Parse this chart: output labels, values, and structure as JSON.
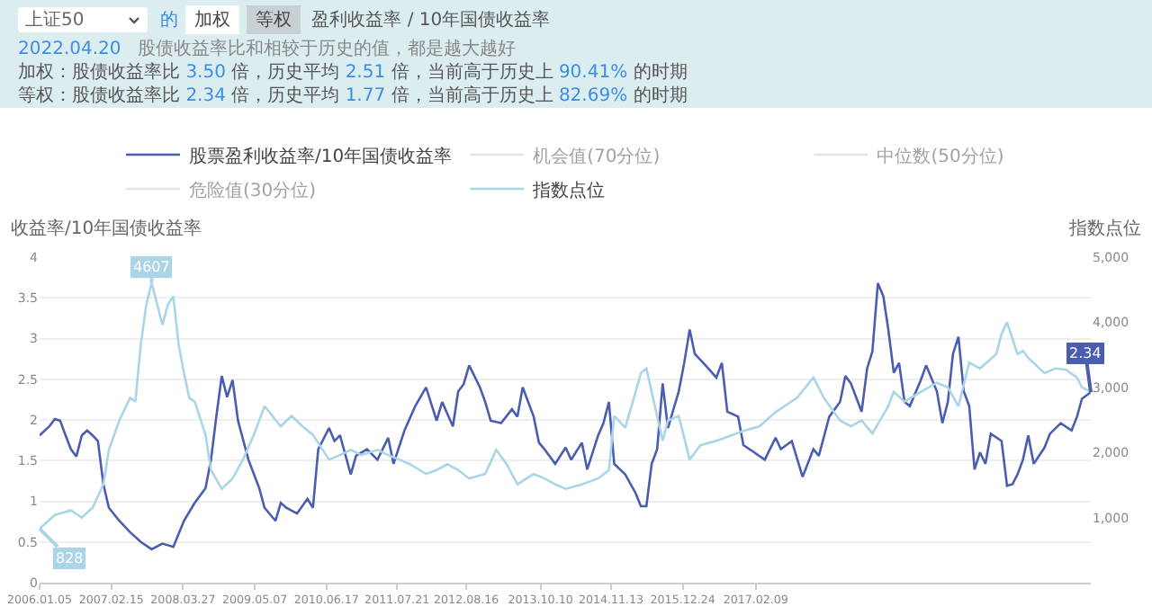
{
  "chart_data": [
    {
      "type": "other",
      "annotations": [
        "上证50",
        "的",
        "加权",
        "等权",
        "盈利收益率 / 10年国债收益率",
        "2022.04.20",
        "股债收益率比和相较于历史的值，都是越大越好",
        "加权：股债收益率比 3.50 倍，历史平均 2.51 倍，当前高于历史上 90.41% 的时期",
        "等权：股债收益率比 2.34 倍，历史平均 1.77 倍，当前高于历史上 82.69% 的时期"
      ]
    },
    {
      "type": "line",
      "ylabel": "收益率/10年国债收益率",
      "y2label": "指数点位",
      "legend": "top",
      "grid": "y",
      "xlim": [
        "2006-01-05",
        "2022-04-20"
      ],
      "xticks": [
        {
          "value": "2006-01-05",
          "label": "2006.01.05"
        },
        {
          "value": "2007-02-15",
          "label": "2007.02.15"
        },
        {
          "value": "2008-03-27",
          "label": "2008.03.27"
        },
        {
          "value": "2009-05-07",
          "label": "2009.05.07"
        },
        {
          "value": "2010-06-17",
          "label": "2010.06.17"
        },
        {
          "value": "2011-07-21",
          "label": "2011.07.21"
        },
        {
          "value": "2012-08-16",
          "label": "2012.08.16"
        },
        {
          "value": "2013-10-10",
          "label": "2013.10.10"
        },
        {
          "value": "2014-11-13",
          "label": "2014.11.13"
        },
        {
          "value": "2015-12-24",
          "label": "2015.12.24"
        },
        {
          "value": "2017-02-09",
          "label": "2017.02.09"
        }
      ],
      "ylim": [
        0,
        4
      ],
      "yticks": [
        0,
        0.5,
        1,
        1.5,
        2,
        2.5,
        3,
        3.5,
        4
      ],
      "y2lim": [
        0,
        5000
      ],
      "y2ticks": [
        {
          "value": 1000,
          "label": "1,000"
        },
        {
          "value": 2000,
          "label": "2,000"
        },
        {
          "value": 3000,
          "label": "3,000"
        },
        {
          "value": 4000,
          "label": "4,000"
        },
        {
          "value": 5000,
          "label": "5,000"
        }
      ],
      "series": [
        {
          "name": "股票盈利收益率/10年国债收益率",
          "color": "#4a5db0",
          "x": [
            "2006-01-05",
            "2006-03",
            "2006-04",
            "2006-05",
            "2006-06",
            "2006-07",
            "2006-08",
            "2006-09",
            "2006-10",
            "2006-11",
            "2006-12",
            "2007-01",
            "2007-02",
            "2007-04",
            "2007-06",
            "2007-08",
            "2007-10",
            "2007-12",
            "2008-02",
            "2008-04",
            "2008-06",
            "2008-08",
            "2008-09",
            "2008-10",
            "2008-11",
            "2008-12",
            "2009-01",
            "2009-02",
            "2009-04",
            "2009-06",
            "2009-07",
            "2009-09",
            "2009-10",
            "2009-11",
            "2010-01",
            "2010-03",
            "2010-04",
            "2010-05",
            "2010-07",
            "2010-08",
            "2010-09",
            "2010-11",
            "2010-12",
            "2011-02",
            "2011-04",
            "2011-06",
            "2011-07",
            "2011-09",
            "2011-11",
            "2012-01",
            "2012-03",
            "2012-04",
            "2012-06",
            "2012-07",
            "2012-08",
            "2012-09",
            "2012-11",
            "2012-12",
            "2013-01",
            "2013-03",
            "2013-05",
            "2013-06",
            "2013-07",
            "2013-09",
            "2013-10",
            "2013-11",
            "2014-01",
            "2014-03",
            "2014-04",
            "2014-06",
            "2014-07",
            "2014-09",
            "2014-10",
            "2014-11",
            "2014-12",
            "2015-02",
            "2015-04",
            "2015-05",
            "2015-06",
            "2015-07",
            "2015-08",
            "2015-09",
            "2015-10",
            "2015-12",
            "2016-01",
            "2016-02",
            "2016-03",
            "2016-05",
            "2016-07",
            "2016-08",
            "2016-09",
            "2016-11",
            "2016-12",
            "2017-02",
            "2017-04",
            "2017-06",
            "2017-07",
            "2017-09",
            "2017-11",
            "2018-01",
            "2018-02",
            "2018-04",
            "2018-06",
            "2018-07",
            "2018-08",
            "2018-10",
            "2018-11",
            "2018-12",
            "2019-01",
            "2019-02",
            "2019-03",
            "2019-04",
            "2019-05",
            "2019-06",
            "2019-07",
            "2019-09",
            "2019-10",
            "2019-12",
            "2020-01",
            "2020-02",
            "2020-03",
            "2020-04",
            "2020-05",
            "2020-06",
            "2020-07",
            "2020-08",
            "2020-09",
            "2020-10",
            "2020-12",
            "2021-01",
            "2021-02",
            "2021-03",
            "2021-04",
            "2021-05",
            "2021-06",
            "2021-08",
            "2021-09",
            "2021-11",
            "2022-01",
            "2022-02",
            "2022-03",
            "2022-04-20"
          ],
          "values": [
            1.81,
            1.92,
            2.01,
            1.99,
            1.81,
            1.64,
            1.55,
            1.81,
            1.87,
            1.81,
            1.74,
            1.21,
            0.92,
            0.76,
            0.62,
            0.5,
            0.41,
            0.48,
            0.44,
            0.76,
            0.98,
            1.16,
            1.51,
            2.04,
            2.54,
            2.28,
            2.49,
            1.99,
            1.51,
            1.16,
            0.92,
            0.76,
            0.98,
            0.92,
            0.85,
            1.03,
            0.92,
            1.64,
            1.9,
            1.74,
            1.81,
            1.33,
            1.56,
            1.64,
            1.51,
            1.78,
            1.46,
            1.87,
            2.17,
            2.4,
            1.99,
            2.22,
            1.92,
            2.35,
            2.44,
            2.67,
            2.4,
            2.22,
            1.99,
            1.96,
            2.13,
            2.04,
            2.4,
            2.04,
            1.72,
            1.64,
            1.46,
            1.66,
            1.51,
            1.72,
            1.39,
            1.81,
            1.96,
            2.22,
            1.46,
            1.33,
            1.1,
            0.94,
            0.94,
            1.46,
            1.64,
            2.45,
            1.9,
            2.35,
            2.7,
            3.11,
            2.81,
            2.67,
            2.52,
            2.7,
            2.1,
            2.04,
            1.69,
            1.6,
            1.51,
            1.78,
            1.64,
            1.74,
            1.3,
            1.64,
            1.56,
            2.04,
            2.22,
            2.54,
            2.45,
            2.1,
            2.63,
            2.84,
            3.68,
            3.52,
            3.11,
            2.58,
            2.7,
            2.22,
            2.17,
            2.49,
            2.67,
            2.35,
            1.96,
            2.22,
            2.81,
            3.02,
            2.35,
            2.17,
            1.39,
            1.6,
            1.46,
            1.83,
            1.74,
            1.19,
            1.21,
            1.33,
            1.51,
            1.81,
            1.46,
            1.66,
            1.83,
            1.96,
            1.87,
            2.04,
            2.26,
            2.34
          ],
          "value_labels": [
            null,
            null,
            null,
            null,
            null,
            null,
            null,
            null,
            null,
            null,
            null,
            null,
            null,
            null,
            null,
            null,
            null,
            null,
            null,
            null,
            null,
            null,
            null,
            null,
            null,
            null,
            null,
            null,
            null,
            null,
            null,
            null,
            null,
            null,
            null,
            null,
            null,
            null,
            null,
            null,
            null,
            null,
            null,
            null,
            null,
            null,
            null,
            null,
            null,
            null,
            null,
            null,
            null,
            null,
            null,
            null,
            null,
            null,
            null,
            null,
            null,
            null,
            null,
            null,
            null,
            null,
            null,
            null,
            null,
            null,
            null,
            null,
            null,
            null,
            null,
            null,
            null,
            null,
            null,
            null,
            null,
            null,
            null,
            null,
            null,
            null,
            null,
            null,
            null,
            null,
            null,
            null,
            null,
            null,
            null,
            null,
            null,
            null,
            null,
            null,
            null,
            null,
            null,
            null,
            null,
            null,
            null,
            null,
            null,
            null,
            null,
            null,
            null,
            null,
            null,
            null,
            null,
            null,
            null,
            null,
            null,
            null,
            null,
            null,
            null,
            null,
            null,
            null,
            null,
            null,
            null,
            null,
            null,
            null,
            null,
            null,
            null,
            null,
            null,
            null,
            null,
            "2.34"
          ]
        },
        {
          "name": "机会值(70分位)",
          "values": [
            null
          ]
        },
        {
          "name": "中位数(50分位)",
          "values": [
            null
          ]
        },
        {
          "name": "危险值(30分位)",
          "values": [
            null
          ]
        },
        {
          "name": "指数点位",
          "color": "#a9d5e6",
          "axis": "y2",
          "x": [
            "2006-01-05",
            "2006-04",
            "2006-07",
            "2006-09",
            "2006-11",
            "2007-01",
            "2007-02",
            "2007-04",
            "2007-06",
            "2007-07",
            "2007-08",
            "2007-09",
            "2007-10",
            "2007-12",
            "2008-01",
            "2008-02",
            "2008-03",
            "2008-04",
            "2008-05",
            "2008-06",
            "2008-08",
            "2008-09",
            "2008-11",
            "2009-01",
            "2009-03",
            "2009-05",
            "2009-07",
            "2009-10",
            "2009-12",
            "2010-02",
            "2010-04",
            "2010-07",
            "2010-09",
            "2010-11",
            "2011-01",
            "2011-04",
            "2011-06",
            "2011-08",
            "2011-10",
            "2012-01",
            "2012-03",
            "2012-05",
            "2012-07",
            "2012-09",
            "2012-12",
            "2013-02",
            "2013-04",
            "2013-06",
            "2013-09",
            "2013-11",
            "2014-01",
            "2014-03",
            "2014-06",
            "2014-09",
            "2014-11",
            "2014-12",
            "2015-02",
            "2015-04",
            "2015-05",
            "2015-06",
            "2015-07",
            "2015-09",
            "2015-10",
            "2015-12",
            "2016-02",
            "2016-04",
            "2016-07",
            "2016-10",
            "2016-12",
            "2017-03",
            "2017-06",
            "2017-10",
            "2018-01",
            "2018-03",
            "2018-06",
            "2018-08",
            "2018-10",
            "2018-12",
            "2019-03",
            "2019-04",
            "2019-06",
            "2019-09",
            "2019-12",
            "2020-02",
            "2020-04",
            "2020-06",
            "2020-08",
            "2020-11",
            "2020-12",
            "2021-01",
            "2021-03",
            "2021-04",
            "2021-05",
            "2021-08",
            "2021-10",
            "2021-12",
            "2022-02",
            "2022-03",
            "2022-04-20"
          ],
          "values": [
            828,
            1040,
            1110,
            1000,
            1150,
            1510,
            2040,
            2490,
            2840,
            2780,
            3670,
            4270,
            4607,
            3960,
            4270,
            4400,
            3670,
            3220,
            2840,
            2780,
            2270,
            1730,
            1440,
            1600,
            1890,
            2270,
            2710,
            2400,
            2560,
            2400,
            2270,
            1890,
            1960,
            2040,
            1960,
            2040,
            1960,
            1890,
            1820,
            1670,
            1730,
            1820,
            1730,
            1600,
            1670,
            2040,
            1820,
            1510,
            1670,
            1600,
            1510,
            1440,
            1510,
            1600,
            1730,
            2560,
            2380,
            2930,
            3220,
            3290,
            2930,
            2180,
            2490,
            2560,
            1890,
            2110,
            2180,
            2270,
            2330,
            2400,
            2620,
            2840,
            3150,
            2840,
            2490,
            2400,
            2490,
            2290,
            2710,
            2930,
            2780,
            2930,
            3070,
            3000,
            2710,
            3380,
            3290,
            3510,
            3820,
            4000,
            3510,
            3560,
            3450,
            3220,
            3290,
            3270,
            3150,
            3000,
            2930
          ],
          "value_labels": [
            "828",
            null,
            null,
            null,
            null,
            null,
            null,
            null,
            null,
            null,
            null,
            null,
            "4607",
            null,
            null,
            null,
            null,
            null,
            null,
            null,
            null,
            null,
            null,
            null,
            null,
            null,
            null,
            null,
            null,
            null,
            null,
            null,
            null,
            null,
            null,
            null,
            null,
            null,
            null,
            null,
            null,
            null,
            null,
            null,
            null,
            null,
            null,
            null,
            null,
            null,
            null,
            null,
            null,
            null,
            null,
            null,
            null,
            null,
            null,
            null,
            null,
            null,
            null,
            null,
            null,
            null,
            null,
            null,
            null,
            null,
            null,
            null,
            null,
            null,
            null,
            null,
            null,
            null,
            null,
            null,
            null,
            null,
            null,
            null,
            null,
            null,
            null,
            null,
            null,
            null,
            null,
            null,
            null,
            null,
            null,
            null,
            null,
            null,
            null
          ]
        }
      ]
    }
  ]
}
